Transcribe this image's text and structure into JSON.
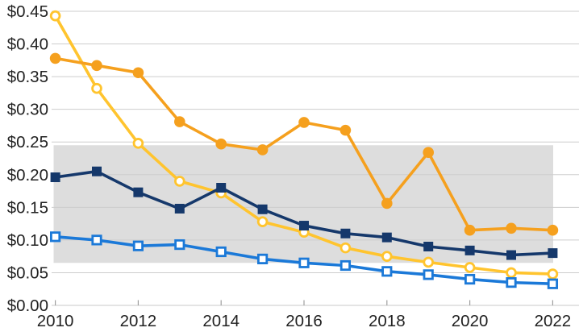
{
  "chart_data": {
    "type": "line",
    "title": "",
    "xlabel": "",
    "ylabel": "",
    "x": [
      2010,
      2011,
      2012,
      2013,
      2014,
      2015,
      2016,
      2017,
      2018,
      2019,
      2020,
      2021,
      2022
    ],
    "series": [
      {
        "name": "series-yellow-open-circle",
        "marker": "circle-open",
        "color": "#FFC42E",
        "values": [
          0.443,
          0.332,
          0.248,
          0.19,
          0.172,
          0.128,
          0.112,
          0.088,
          0.075,
          0.066,
          0.058,
          0.05,
          0.048
        ]
      },
      {
        "name": "series-orange-filled-circle",
        "marker": "circle-filled",
        "color": "#F5A01E",
        "values": [
          0.378,
          0.367,
          0.356,
          0.281,
          0.247,
          0.238,
          0.28,
          0.268,
          0.156,
          0.234,
          0.115,
          0.118,
          0.115
        ]
      },
      {
        "name": "series-navy-filled-square",
        "marker": "square-filled",
        "color": "#15386B",
        "values": [
          0.196,
          0.205,
          0.173,
          0.148,
          0.18,
          0.147,
          0.122,
          0.11,
          0.104,
          0.09,
          0.084,
          0.077,
          0.08
        ]
      },
      {
        "name": "series-blue-open-square",
        "marker": "square-open",
        "color": "#1B79D8",
        "values": [
          0.105,
          0.1,
          0.091,
          0.093,
          0.082,
          0.071,
          0.065,
          0.061,
          0.052,
          0.047,
          0.04,
          0.035,
          0.033
        ]
      }
    ],
    "ylim": [
      0,
      0.45
    ],
    "ytick_step": 0.05,
    "ytick_labels": [
      "$0.00",
      "$0.05",
      "$0.10",
      "$0.15",
      "$0.20",
      "$0.25",
      "$0.30",
      "$0.35",
      "$0.40",
      "$0.45"
    ],
    "xtick_labels": [
      "2010",
      "2012",
      "2014",
      "2016",
      "2018",
      "2020",
      "2022"
    ],
    "shaded_band": {
      "from": 0.065,
      "to": 0.245,
      "color": "#DDDDDD"
    },
    "grid": true,
    "grid_color": "#CDCDCD",
    "axis_color": "#C9C9C9",
    "tick_color": "#9E9E9E",
    "label_color": "#222222",
    "legend": "none"
  }
}
